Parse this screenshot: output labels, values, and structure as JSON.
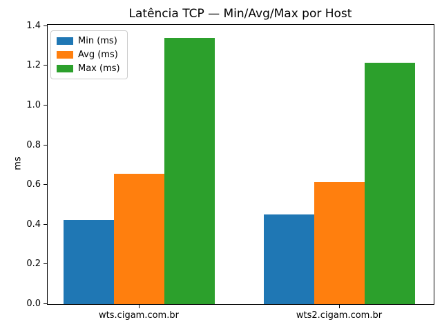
{
  "title": "Latência TCP — Min/Avg/Max por Host",
  "chart_data": {
    "type": "bar",
    "title": "Latência TCP — Min/Avg/Max por Host",
    "xlabel": "",
    "ylabel": "ms",
    "categories": [
      "wts.cigam.com.br",
      "wts2.cigam.com.br"
    ],
    "series": [
      {
        "name": "Min (ms)",
        "color": "#1f77b4",
        "values": [
          0.425,
          0.45
        ]
      },
      {
        "name": "Avg (ms)",
        "color": "#ff7f0e",
        "values": [
          0.655,
          0.615
        ]
      },
      {
        "name": "Max (ms)",
        "color": "#2ca02c",
        "values": [
          1.34,
          1.215
        ]
      }
    ],
    "ylim": [
      0,
      1.4
    ],
    "ytick_step": 0.2,
    "yticks": [
      "0.0",
      "0.2",
      "0.4",
      "0.6",
      "0.8",
      "1.0",
      "1.2",
      "1.4"
    ],
    "grid": false,
    "legend_position": "upper left",
    "axis_color": "#000000",
    "background_color": "#ffffff"
  }
}
